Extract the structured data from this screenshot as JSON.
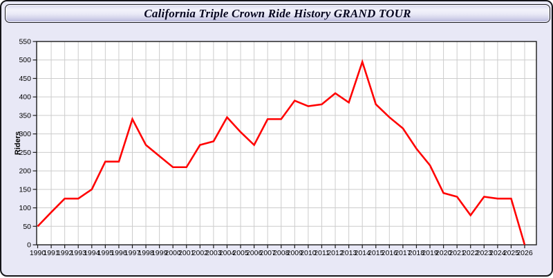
{
  "header": {
    "title": "California Triple Crown Ride History GRAND TOUR"
  },
  "chart_data": {
    "type": "line",
    "title": "California Triple Crown Ride History GRAND TOUR",
    "x": [
      1990,
      1991,
      1992,
      1993,
      1994,
      1995,
      1996,
      1997,
      1998,
      1999,
      2000,
      2001,
      2002,
      2003,
      2004,
      2005,
      2006,
      2007,
      2008,
      2009,
      2010,
      2011,
      2012,
      2013,
      2014,
      2015,
      2016,
      2017,
      2018,
      2019,
      2020,
      2021,
      2022,
      2023,
      2024,
      2025,
      2026
    ],
    "series": [
      {
        "name": "Riders",
        "color": "#ff0000",
        "values": [
          50,
          88,
          125,
          125,
          150,
          225,
          225,
          340,
          270,
          240,
          210,
          210,
          270,
          280,
          345,
          305,
          270,
          340,
          340,
          390,
          375,
          380,
          410,
          385,
          495,
          380,
          345,
          315,
          260,
          215,
          140,
          130,
          80,
          130,
          125,
          125,
          0
        ]
      }
    ],
    "xlabel": "",
    "ylabel": "Riders",
    "ylim": [
      0,
      550
    ],
    "ytick_step": 50,
    "grid": true,
    "legend": "none",
    "plot_bg": "#ffffff",
    "panel_bg": "#e8e8f6",
    "grid_color": "#cccccc",
    "axis_color": "#1a1a1a"
  }
}
